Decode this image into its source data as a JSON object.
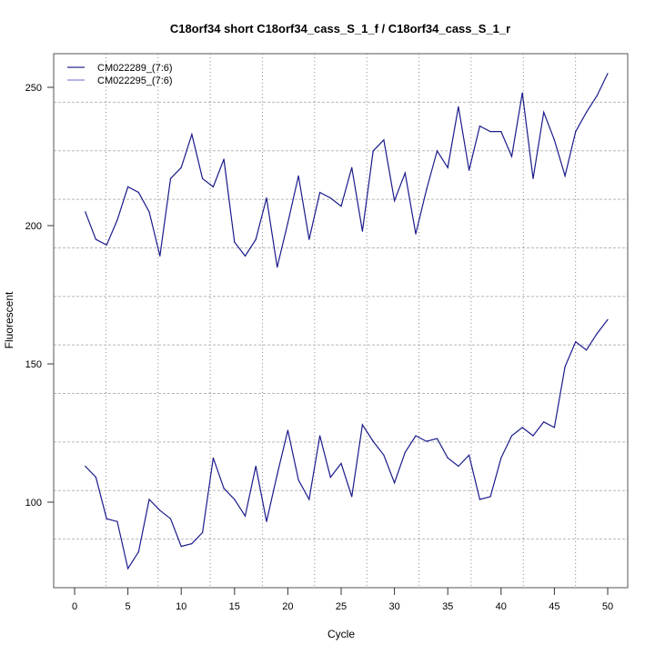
{
  "chart_data": {
    "type": "line",
    "title": "C18orf34 short C18orf34_cass_S_1_f / C18orf34_cass_S_1_r",
    "xlabel": "Cycle",
    "ylabel": "Fluorescent",
    "xlim": [
      -1,
      52
    ],
    "ylim": [
      68,
      261
    ],
    "x_ticks": [
      0,
      5,
      10,
      15,
      20,
      25,
      30,
      35,
      40,
      45,
      50
    ],
    "x_tick_labels": [
      "0",
      "5",
      "10",
      "15",
      "20",
      "25",
      "30",
      "35",
      "40",
      "45",
      "50"
    ],
    "y_ticks": [
      100,
      150,
      200,
      250
    ],
    "y_tick_labels": [
      "100",
      "150",
      "200",
      "250"
    ],
    "grid": true,
    "grid_divisions": 11,
    "legend_position": "top-left",
    "x": [
      1,
      2,
      3,
      4,
      5,
      6,
      7,
      8,
      9,
      10,
      11,
      12,
      13,
      14,
      15,
      16,
      17,
      18,
      19,
      20,
      21,
      22,
      23,
      24,
      25,
      26,
      27,
      28,
      29,
      30,
      31,
      32,
      33,
      34,
      35,
      36,
      37,
      38,
      39,
      40,
      41,
      42,
      43,
      44,
      45,
      46,
      47,
      48,
      49,
      50
    ],
    "series": [
      {
        "name": "CM022289_(7:6)",
        "line_color": "#1a1a8c",
        "legend_color": "#2a2a90",
        "values": [
          205,
          195,
          193,
          202,
          214,
          212,
          205,
          189,
          217,
          221,
          233,
          217,
          214,
          224,
          194,
          189,
          195,
          210,
          185,
          201,
          218,
          195,
          212,
          210,
          207,
          221,
          198,
          227,
          231,
          209,
          219,
          197,
          213,
          227,
          221,
          243,
          220,
          236,
          234,
          234,
          225,
          248,
          217,
          241,
          231,
          218,
          234,
          241,
          247,
          255
        ]
      },
      {
        "name": "CM022295_(7:6)",
        "line_color": "#1a1a8c",
        "legend_color": "#8a8ad8",
        "values": [
          113,
          109,
          94,
          93,
          76,
          82,
          101,
          97,
          94,
          84,
          85,
          89,
          116,
          105,
          101,
          95,
          113,
          93,
          110,
          126,
          108,
          101,
          124,
          109,
          114,
          102,
          128,
          122,
          117,
          107,
          118,
          124,
          122,
          123,
          116,
          113,
          117,
          101,
          102,
          116,
          124,
          127,
          124,
          129,
          127,
          149,
          158,
          155,
          161,
          166
        ]
      }
    ]
  }
}
